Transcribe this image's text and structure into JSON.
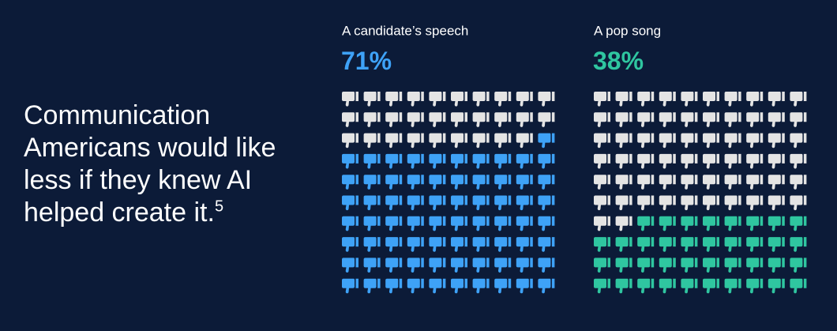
{
  "title": "Communication Americans would like less if they knew AI helped create it.",
  "footnote": "5",
  "chart_data": [
    {
      "type": "waffle",
      "title": "A candidate’s speech",
      "values": [
        71
      ],
      "value_labels": [
        "71%"
      ],
      "color": "#3ea2f7",
      "empty_color": "#e4e4e4"
    },
    {
      "type": "waffle",
      "title": "A pop song",
      "values": [
        38
      ],
      "value_labels": [
        "38%"
      ],
      "color": "#2fc6a0",
      "empty_color": "#e4e4e4"
    }
  ]
}
